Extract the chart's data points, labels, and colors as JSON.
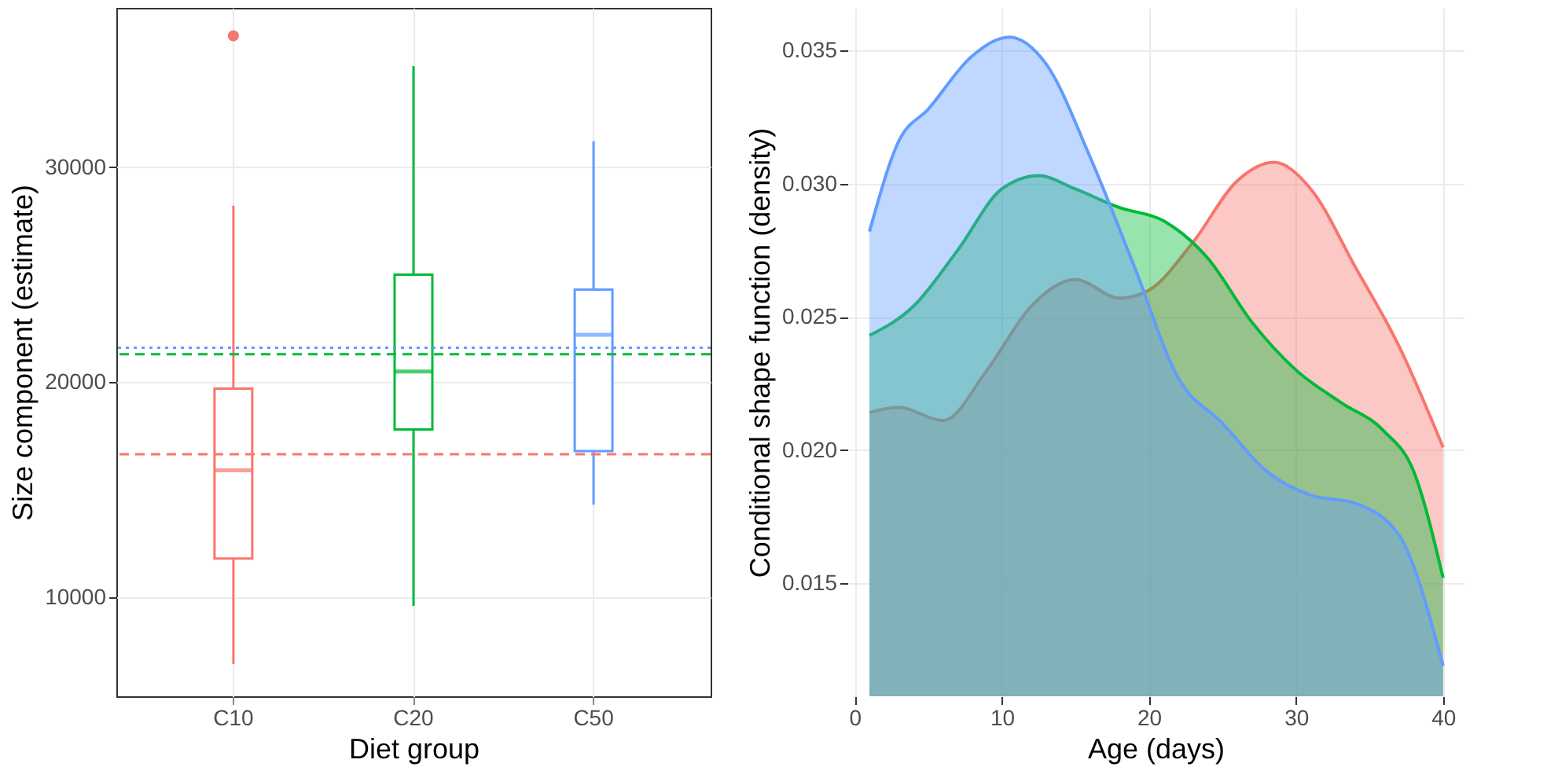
{
  "chart_data": [
    {
      "type": "box",
      "xlabel": "Diet group",
      "ylabel": "Size component (estimate)",
      "categories": [
        "C10",
        "C20",
        "C50"
      ],
      "colors": [
        "#f8766d",
        "#00ba38",
        "#619cff"
      ],
      "boxes": [
        {
          "low": 6900,
          "q1": 11800,
          "median": 15900,
          "q3": 19700,
          "high": 28200,
          "outliers": [
            36100
          ]
        },
        {
          "low": 9600,
          "q1": 17800,
          "median": 20500,
          "q3": 25000,
          "high": 34700
        },
        {
          "low": 14300,
          "q1": 16800,
          "median": 22200,
          "q3": 24300,
          "high": 31200
        }
      ],
      "ylim": [
        5400,
        37400
      ],
      "yticks": [
        10000,
        20000,
        30000
      ],
      "grid": true,
      "ref_lines": [
        {
          "axis": "y",
          "value": 16650,
          "color": "#f8766d",
          "line_style": "dashed"
        },
        {
          "axis": "y",
          "value": 21300,
          "color": "#00ba38",
          "line_style": "dashed"
        },
        {
          "axis": "y",
          "value": 21600,
          "color": "#619cff",
          "line_style": "dotted"
        }
      ]
    },
    {
      "type": "area",
      "xlabel": "Age (days)",
      "ylabel": "Conditional shape function (density)",
      "xlim": [
        -0.5,
        41.4
      ],
      "xticks": [
        0,
        10,
        20,
        30,
        40
      ],
      "ylim": [
        0.01075,
        0.0366
      ],
      "yticks": [
        {
          "value": 0.015,
          "label": "0.015"
        },
        {
          "value": 0.02,
          "label": "0.020"
        },
        {
          "value": 0.025,
          "label": "0.025"
        },
        {
          "value": 0.03,
          "label": "0.030"
        },
        {
          "value": 0.035,
          "label": "0.035"
        }
      ],
      "grid": true,
      "series": [
        {
          "color": "#f8766d",
          "x": [
            1,
            3,
            6,
            9,
            12,
            15,
            18,
            20,
            23,
            26,
            28.5,
            31,
            34,
            37,
            40
          ],
          "values": [
            0.0214,
            0.0216,
            0.0211,
            0.023,
            0.0254,
            0.0264,
            0.0257,
            0.026,
            0.0278,
            0.0301,
            0.0308,
            0.0298,
            0.0269,
            0.0239,
            0.0201
          ]
        },
        {
          "color": "#00ba38",
          "x": [
            1,
            4,
            7,
            10,
            12.5,
            15,
            18,
            21,
            24,
            27,
            30,
            33,
            36,
            38,
            40
          ],
          "values": [
            0.0243,
            0.0254,
            0.0275,
            0.0298,
            0.0303,
            0.0298,
            0.0291,
            0.0286,
            0.0272,
            0.0248,
            0.023,
            0.0218,
            0.0207,
            0.0192,
            0.0152
          ]
        },
        {
          "color": "#619cff",
          "x": [
            1,
            3,
            5,
            8,
            10.5,
            13,
            16,
            19,
            22,
            25,
            28,
            31,
            34,
            37,
            40
          ],
          "values": [
            0.0282,
            0.0316,
            0.0328,
            0.0348,
            0.0355,
            0.0345,
            0.031,
            0.0269,
            0.0227,
            0.021,
            0.0192,
            0.0183,
            0.018,
            0.0168,
            0.0119
          ]
        }
      ]
    }
  ]
}
